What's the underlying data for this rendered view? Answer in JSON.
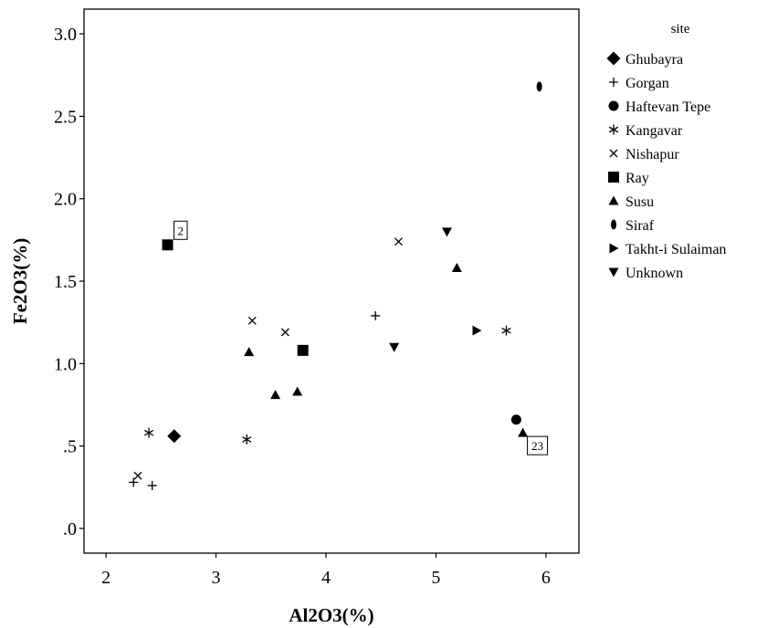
{
  "chart_data": {
    "type": "scatter",
    "title": "",
    "xlabel": "Al2O3(%)",
    "ylabel": "Fe2O3(%)",
    "xlim": [
      1.8,
      6.3
    ],
    "ylim": [
      -0.15,
      3.15
    ],
    "x_ticks": [
      2,
      3,
      4,
      5,
      6
    ],
    "x_tick_labels": [
      "2",
      "3",
      "4",
      "5",
      "6"
    ],
    "y_ticks": [
      0,
      0.5,
      1.0,
      1.5,
      2.0,
      2.5,
      3.0
    ],
    "y_tick_labels": [
      ".0",
      ".5",
      "1.0",
      "1.5",
      "2.0",
      "2.5",
      "3.0"
    ],
    "grid": false,
    "legend_title": "site",
    "legend_position": "right",
    "series": [
      {
        "name": "Ghubayra",
        "marker": "diamond",
        "points": [
          [
            2.62,
            0.56
          ]
        ]
      },
      {
        "name": "Gorgan",
        "marker": "plus",
        "points": [
          [
            2.25,
            0.28
          ],
          [
            2.42,
            0.26
          ],
          [
            4.45,
            1.29
          ]
        ]
      },
      {
        "name": "Haftevan Tepe",
        "marker": "circle",
        "points": [
          [
            5.73,
            0.66
          ]
        ]
      },
      {
        "name": "Kangavar",
        "marker": "star",
        "points": [
          [
            2.39,
            0.58
          ],
          [
            3.28,
            0.54
          ],
          [
            5.64,
            1.2
          ]
        ]
      },
      {
        "name": "Nishapur",
        "marker": "x",
        "points": [
          [
            2.29,
            0.32
          ],
          [
            3.33,
            1.26
          ],
          [
            3.63,
            1.19
          ],
          [
            4.66,
            1.74
          ]
        ]
      },
      {
        "name": "Ray",
        "marker": "square",
        "points": [
          [
            2.56,
            1.72
          ],
          [
            3.79,
            1.08
          ]
        ]
      },
      {
        "name": "Susu",
        "marker": "triangle-up",
        "points": [
          [
            3.3,
            1.07
          ],
          [
            3.54,
            0.81
          ],
          [
            3.74,
            0.83
          ],
          [
            5.19,
            1.58
          ],
          [
            5.79,
            0.58
          ]
        ]
      },
      {
        "name": "Siraf",
        "marker": "ellipse",
        "points": [
          [
            5.94,
            2.68
          ]
        ]
      },
      {
        "name": "Takht-i Sulaiman",
        "marker": "triangle-right",
        "points": [
          [
            5.37,
            1.2
          ]
        ]
      },
      {
        "name": "Unknown",
        "marker": "triangle-down",
        "points": [
          [
            4.62,
            1.1
          ],
          [
            5.1,
            1.8
          ]
        ]
      }
    ],
    "annotations": [
      {
        "text": "2",
        "point": [
          2.56,
          1.72
        ]
      },
      {
        "text": "23",
        "point": [
          5.79,
          0.58
        ]
      }
    ]
  }
}
